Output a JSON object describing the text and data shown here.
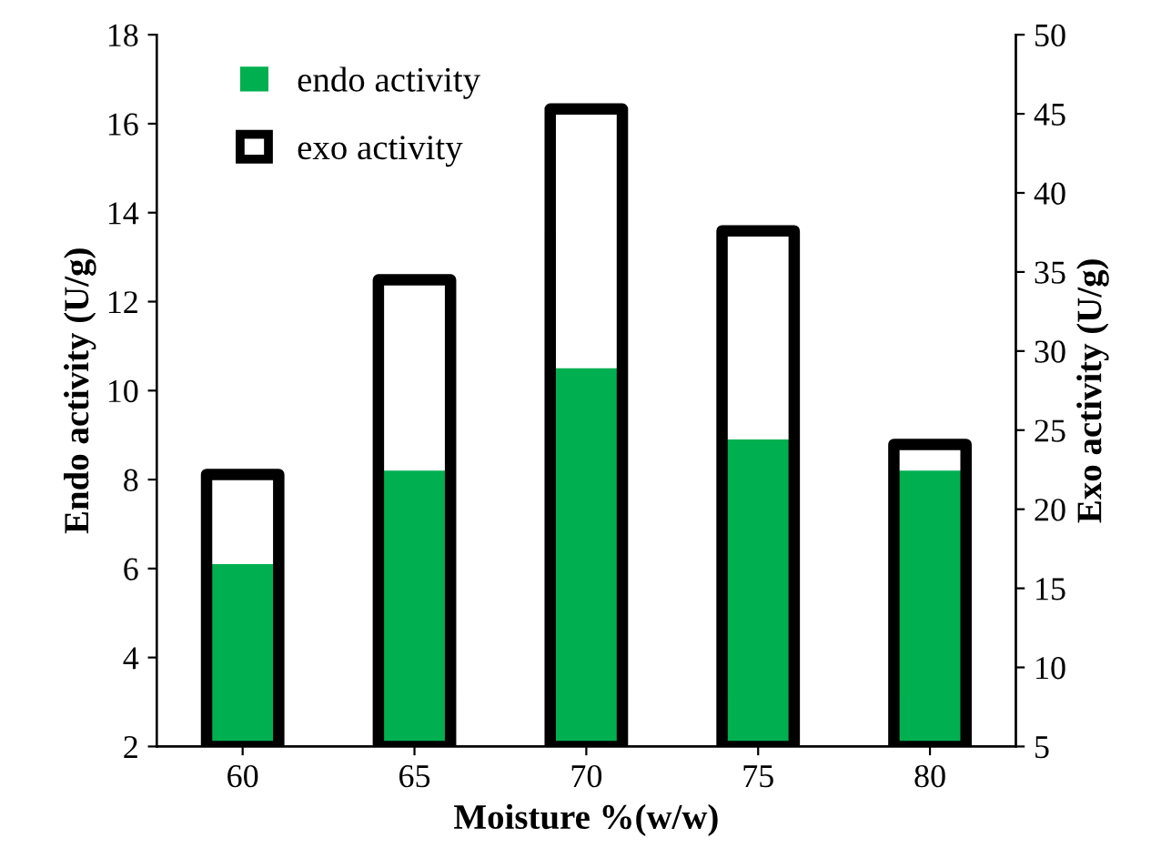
{
  "chart_data": {
    "type": "bar",
    "xlabel": "Moisture %(w/w)",
    "ylabel": "Endo activity (U/g)",
    "y2label": "Exo activity (U/g)",
    "categories": [
      "60",
      "65",
      "70",
      "75",
      "80"
    ],
    "series": [
      {
        "name": "endo activity",
        "color": "#00b050",
        "values": [
          6.1,
          8.2,
          10.5,
          8.9,
          8.2
        ]
      },
      {
        "name": "exo activity",
        "color": "#000000",
        "axis": "y2",
        "values": [
          22.2,
          34.5,
          45.3,
          37.6,
          24.1
        ]
      }
    ],
    "ylim": [
      2,
      18
    ],
    "yticks": [
      2,
      4,
      6,
      8,
      10,
      12,
      14,
      16,
      18
    ],
    "y2lim": [
      5,
      50
    ],
    "y2ticks": [
      5,
      10,
      15,
      20,
      25,
      30,
      35,
      40,
      45,
      50
    ],
    "grid": false,
    "legend": "top left"
  }
}
